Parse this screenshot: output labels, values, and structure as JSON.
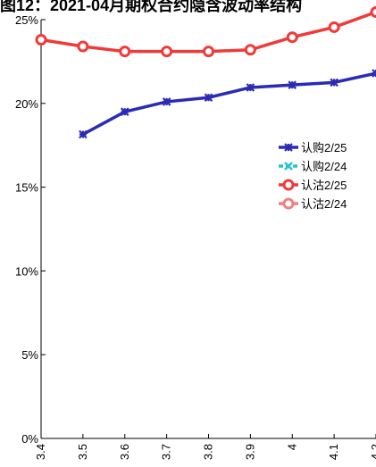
{
  "chart_data": {
    "type": "line",
    "title": "图12：2021-04月期权合约隐含波动率结构",
    "xlabel": "",
    "ylabel": "",
    "x": [
      3.4,
      3.5,
      3.6,
      3.7,
      3.8,
      3.9,
      4.0,
      4.1,
      4.2
    ],
    "x_tick_labels": [
      "3.4",
      "3.5",
      "3.6",
      "3.7",
      "3.8",
      "3.9",
      "4",
      "4.1",
      "4.2"
    ],
    "ylim": [
      0,
      0.25
    ],
    "y_ticks": [
      0,
      0.05,
      0.1,
      0.15,
      0.2,
      0.25
    ],
    "y_tick_labels": [
      "0%",
      "5%",
      "10%",
      "15%",
      "20%",
      "25%"
    ],
    "grid": false,
    "legend_position": "right",
    "series": [
      {
        "name": "认购2/25",
        "color": "#2b2bb5",
        "marker": "star",
        "values": [
          null,
          0.1815,
          0.195,
          0.201,
          0.2035,
          0.2095,
          0.211,
          0.2125,
          0.218
        ]
      },
      {
        "name": "认购2/24",
        "color": "#22c4d4",
        "marker": "x-dashed",
        "values": [
          null,
          null,
          null,
          null,
          null,
          null,
          null,
          null,
          null
        ]
      },
      {
        "name": "认沽2/25",
        "color": "#f03a3a",
        "marker": "circle",
        "values": [
          0.238,
          0.234,
          0.231,
          0.231,
          0.231,
          0.232,
          0.2395,
          0.2455,
          0.2545
        ]
      },
      {
        "name": "认沽2/24",
        "color": "#f08080",
        "marker": "circle-light",
        "values": [
          null,
          null,
          null,
          null,
          null,
          null,
          null,
          null,
          null
        ]
      }
    ]
  }
}
